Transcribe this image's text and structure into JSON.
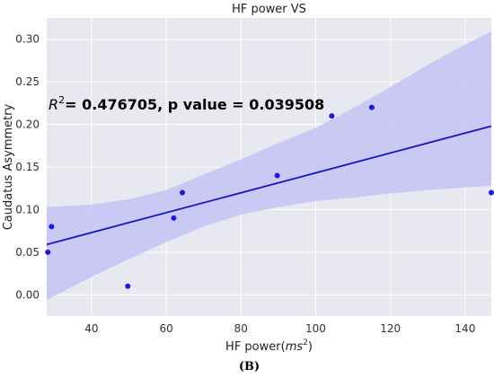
{
  "chart_data": {
    "type": "scatter",
    "title": "HF power VS",
    "xlabel_prefix": "HF power(",
    "xlabel_var": "ms",
    "xlabel_sup": "2",
    "xlabel_suffix": ")",
    "ylabel": "Caudatus Asymmetry",
    "xlim": [
      28,
      147
    ],
    "ylim": [
      -0.025,
      0.325
    ],
    "xticks": [
      40,
      60,
      80,
      100,
      120,
      140
    ],
    "yticks": [
      0.0,
      0.05,
      0.1,
      0.15,
      0.2,
      0.25,
      0.3
    ],
    "grid": true,
    "points": [
      {
        "x": 28.3,
        "y": 0.05
      },
      {
        "x": 29.3,
        "y": 0.08
      },
      {
        "x": 49.7,
        "y": 0.01
      },
      {
        "x": 62.0,
        "y": 0.09
      },
      {
        "x": 64.3,
        "y": 0.12
      },
      {
        "x": 89.7,
        "y": 0.14
      },
      {
        "x": 104.3,
        "y": 0.21
      },
      {
        "x": 115.0,
        "y": 0.22
      },
      {
        "x": 147.0,
        "y": 0.12
      }
    ],
    "regression": {
      "x": [
        28,
        147
      ],
      "y": [
        0.059,
        0.198
      ]
    },
    "confidence_band": {
      "x": [
        28,
        40,
        50,
        60,
        70,
        80,
        90,
        100,
        110,
        120,
        130,
        140,
        147
      ],
      "upper": [
        0.103,
        0.106,
        0.112,
        0.123,
        0.141,
        0.159,
        0.178,
        0.196,
        0.219,
        0.244,
        0.27,
        0.294,
        0.309
      ],
      "lower": [
        -0.006,
        0.021,
        0.042,
        0.062,
        0.08,
        0.094,
        0.103,
        0.11,
        0.114,
        0.119,
        0.123,
        0.126,
        0.128
      ]
    },
    "colors": {
      "point": "#1a1adf",
      "line": "#1515c4",
      "band": "#c3c3f5",
      "plot_bg": "#e8e8f0",
      "grid": "#ffffff"
    },
    "annotation": {
      "r_symbol": "R",
      "r_sup": "2",
      "text": "= 0.476705, p value = 0.039508"
    },
    "caption": "(B)"
  }
}
